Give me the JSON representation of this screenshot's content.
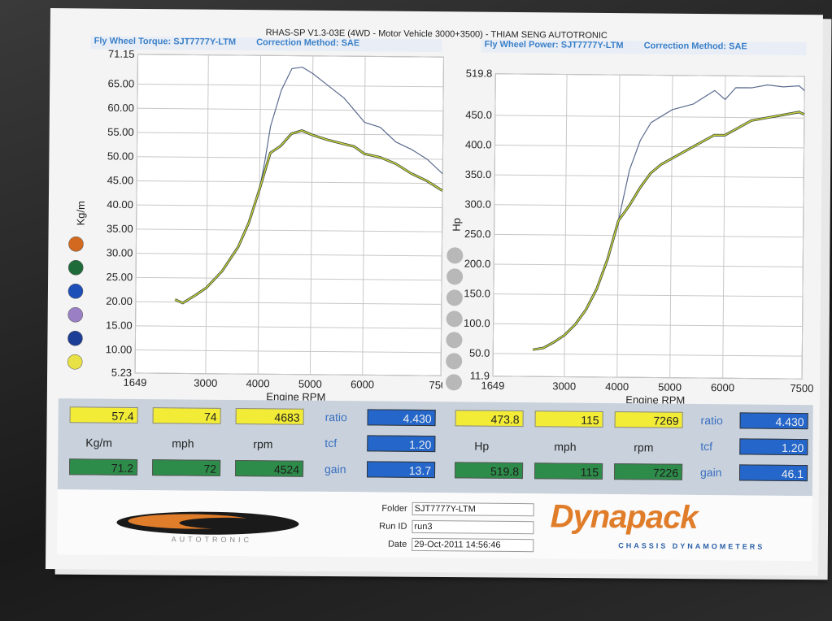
{
  "header": {
    "title": "RHAS-SP V1.3-03E  (4WD - Motor Vehicle 3000+3500) - THIAM SENG AUTOTRONIC"
  },
  "left_panel": {
    "label": "Fly Wheel Torque: SJT7777Y-LTM",
    "correction": "Correction Method: SAE"
  },
  "right_panel": {
    "label": "Fly Wheel Power: SJT7777Y-LTM",
    "correction": "Correction Method: SAE"
  },
  "colors": {
    "blue_curve": "#5b6b8f",
    "yellow_curve": "#d8d43a",
    "dark_curve": "#2e4a3a",
    "panel_label": "#3a7fc8",
    "brand_orange": "#e07d2a",
    "brand_blue": "#2a5fa8"
  },
  "legend_dots_left": [
    "#d2691e",
    "#1f6b3a",
    "#1d4fb8",
    "#9b7fc4",
    "#1c3e96",
    "#e8e246"
  ],
  "chart_data": [
    {
      "type": "line",
      "ylabel": "Kg/m",
      "xlabel": "Engine RPM",
      "x_ticks": [
        "1649",
        "3000",
        "4000",
        "5000",
        "6000",
        "7500"
      ],
      "y_ticks": [
        "71.15",
        "65.00",
        "60.00",
        "55.00",
        "50.00",
        "45.00",
        "40.00",
        "35.00",
        "30.00",
        "25.00",
        "20.00",
        "15.00",
        "10.00",
        "5.23"
      ],
      "xlim": [
        1649,
        7500
      ],
      "ylim": [
        5.23,
        71.15
      ],
      "grid": true,
      "series": [
        {
          "x": [
            2400,
            2550,
            2800,
            3000,
            3300,
            3600,
            3800,
            4000,
            4100,
            4200,
            4400,
            4600,
            4800,
            5000,
            5300,
            5600,
            5800,
            6000,
            6300,
            6600,
            6900,
            7200,
            7500
          ],
          "values": [
            20.5,
            19.8,
            21.5,
            23.0,
            26.5,
            31.5,
            36.5,
            43.5,
            49.5,
            56.5,
            64.0,
            68.5,
            68.8,
            67.5,
            65.0,
            62.5,
            60.0,
            57.5,
            56.5,
            53.5,
            52.0,
            50.0,
            47.0
          ]
        },
        {
          "x": [
            2400,
            2550,
            2800,
            3000,
            3300,
            3600,
            3800,
            4000,
            4200,
            4400,
            4600,
            4800,
            5000,
            5300,
            5600,
            5800,
            6000,
            6300,
            6600,
            6900,
            7200,
            7500
          ],
          "values": [
            20.5,
            19.8,
            21.5,
            23.0,
            26.5,
            31.5,
            36.5,
            43.5,
            51.0,
            52.5,
            55.0,
            55.7,
            54.8,
            53.8,
            53.0,
            52.5,
            51.0,
            50.3,
            49.0,
            47.0,
            45.5,
            43.5
          ]
        }
      ]
    },
    {
      "type": "line",
      "ylabel": "Hp",
      "xlabel": "Engine RPM",
      "x_ticks": [
        "1649",
        "3000",
        "4000",
        "5000",
        "6000",
        "7500"
      ],
      "y_ticks": [
        "519.8",
        "450.0",
        "400.0",
        "350.0",
        "300.0",
        "250.0",
        "200.0",
        "150.0",
        "100.0",
        "50.0",
        "11.9"
      ],
      "xlim": [
        1649,
        7500
      ],
      "ylim": [
        11.9,
        519.8
      ],
      "grid": true,
      "series": [
        {
          "x": [
            2400,
            2600,
            2800,
            3000,
            3200,
            3400,
            3600,
            3800,
            4000,
            4200,
            4400,
            4600,
            5000,
            5400,
            5800,
            6000,
            6200,
            6500,
            6800,
            7100,
            7400,
            7500
          ],
          "values": [
            57,
            60,
            70,
            82,
            100,
            125,
            160,
            210,
            275,
            360,
            410,
            440,
            462,
            472,
            495,
            480,
            500,
            500,
            505,
            502,
            504,
            496
          ]
        },
        {
          "x": [
            2400,
            2600,
            2800,
            3000,
            3200,
            3400,
            3600,
            3800,
            4000,
            4200,
            4400,
            4600,
            4800,
            5000,
            5400,
            5800,
            6000,
            6200,
            6500,
            6800,
            7100,
            7400,
            7500
          ],
          "values": [
            57,
            60,
            70,
            82,
            100,
            125,
            160,
            210,
            275,
            300,
            330,
            355,
            370,
            380,
            400,
            420,
            420,
            430,
            445,
            450,
            455,
            460,
            456
          ]
        }
      ]
    }
  ],
  "readouts_left": {
    "row1": [
      "57.4",
      "74",
      "4683"
    ],
    "row2": [
      "Kg/m",
      "mph",
      "rpm"
    ],
    "row3": [
      "71.2",
      "72",
      "4524"
    ],
    "params": [
      {
        "label": "ratio",
        "value": "4.430"
      },
      {
        "label": "tcf",
        "value": "1.20"
      },
      {
        "label": "gain",
        "value": "13.7"
      }
    ]
  },
  "readouts_right": {
    "row1": [
      "473.8",
      "115",
      "7269"
    ],
    "row2": [
      "Hp",
      "mph",
      "rpm"
    ],
    "row3": [
      "519.8",
      "115",
      "7226"
    ],
    "params": [
      {
        "label": "ratio",
        "value": "4.430"
      },
      {
        "label": "tcf",
        "value": "1.20"
      },
      {
        "label": "gain",
        "value": "46.1"
      }
    ]
  },
  "footer": {
    "folder_label": "Folder",
    "folder_value": "SJT7777Y-LTM",
    "runid_label": "Run ID",
    "runid_value": "run3",
    "date_label": "Date",
    "date_value": "29-Oct-2011  14:56:46",
    "left_logo_text": "AUTOTRONIC",
    "brand": "Dynapack",
    "brand_sub": "CHASSIS   DYNAMOMETERS"
  }
}
